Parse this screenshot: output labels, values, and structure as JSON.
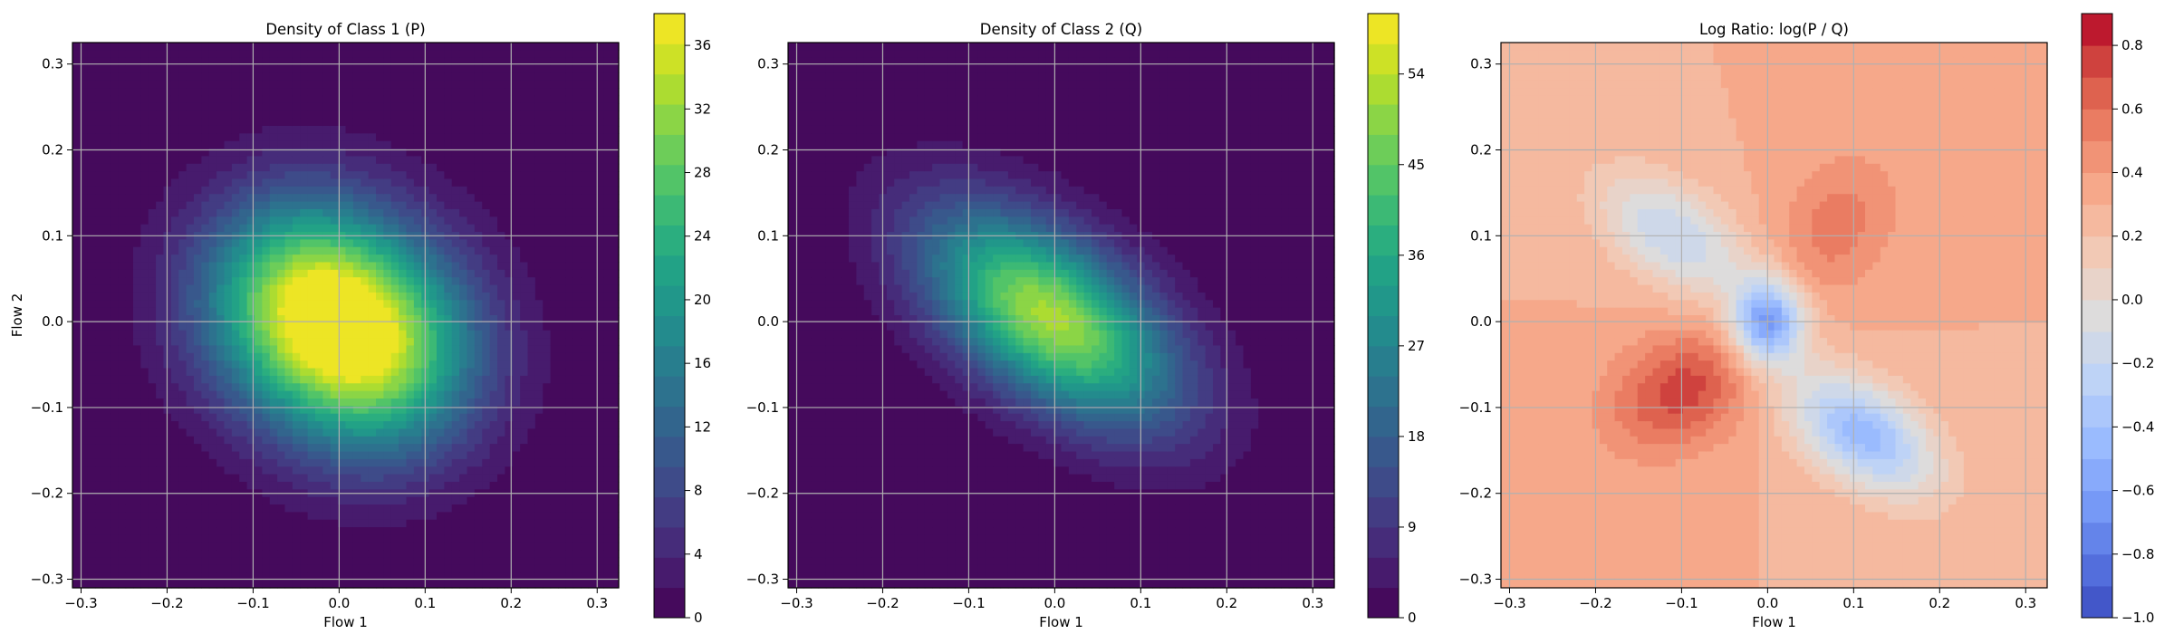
{
  "chart_data": [
    {
      "type": "heatmap",
      "title": "Density of Class 1 (P)",
      "xlabel": "Flow 1",
      "ylabel": "Flow 2",
      "xlim": [
        -0.31,
        0.325
      ],
      "ylim": [
        -0.31,
        0.325
      ],
      "x_ticks": [
        -0.3,
        -0.2,
        -0.1,
        0.0,
        0.1,
        0.2,
        0.3
      ],
      "x_tick_labels": [
        "−0.3",
        "−0.2",
        "−0.1",
        "0.0",
        "0.1",
        "0.2",
        "0.3"
      ],
      "y_ticks": [
        -0.3,
        -0.2,
        -0.1,
        0.0,
        0.1,
        0.2,
        0.3
      ],
      "y_tick_labels": [
        "−0.3",
        "−0.2",
        "−0.1",
        "0.0",
        "0.1",
        "0.2",
        "0.3"
      ],
      "grid": true,
      "colormap": "viridis",
      "colorbar": {
        "min": 0,
        "max": 38,
        "ticks": [
          0,
          4,
          8,
          12,
          16,
          20,
          24,
          28,
          32,
          36
        ],
        "tick_labels": [
          "0",
          "4",
          "8",
          "12",
          "16",
          "20",
          "24",
          "28",
          "32",
          "36"
        ]
      },
      "features": [
        {
          "kind": "gaussian",
          "cx": -0.045,
          "cy": 0.03,
          "sx": 0.085,
          "sy": 0.085,
          "rho": 0.0,
          "peak": 28
        },
        {
          "kind": "gaussian",
          "cx": 0.045,
          "cy": -0.04,
          "sx": 0.085,
          "sy": 0.085,
          "rho": 0.0,
          "peak": 28
        }
      ]
    },
    {
      "type": "heatmap",
      "title": "Density of Class 2 (Q)",
      "xlabel": "Flow 1",
      "ylabel": "",
      "xlim": [
        -0.31,
        0.325
      ],
      "ylim": [
        -0.31,
        0.325
      ],
      "x_ticks": [
        -0.3,
        -0.2,
        -0.1,
        0.0,
        0.1,
        0.2,
        0.3
      ],
      "x_tick_labels": [
        "−0.3",
        "−0.2",
        "−0.1",
        "0.0",
        "0.1",
        "0.2",
        "0.3"
      ],
      "y_ticks": [
        -0.3,
        -0.2,
        -0.1,
        0.0,
        0.1,
        0.2,
        0.3
      ],
      "y_tick_labels": [
        "−0.3",
        "−0.2",
        "−0.1",
        "0.0",
        "0.1",
        "0.2",
        "0.3"
      ],
      "grid": true,
      "colormap": "viridis",
      "colorbar": {
        "min": 0,
        "max": 60,
        "ticks": [
          0,
          9,
          18,
          27,
          36,
          45,
          54
        ],
        "tick_labels": [
          "0",
          "9",
          "18",
          "27",
          "36",
          "45",
          "54"
        ]
      },
      "features": [
        {
          "kind": "gaussian",
          "cx": -0.005,
          "cy": 0.005,
          "sx": 0.1,
          "sy": 0.085,
          "rho": -0.55,
          "peak": 52
        }
      ]
    },
    {
      "type": "heatmap",
      "title": "Log Ratio: log(P / Q)",
      "xlabel": "Flow 1",
      "ylabel": "",
      "xlim": [
        -0.31,
        0.325
      ],
      "ylim": [
        -0.31,
        0.325
      ],
      "x_ticks": [
        -0.3,
        -0.2,
        -0.1,
        0.0,
        0.1,
        0.2,
        0.3
      ],
      "x_tick_labels": [
        "−0.3",
        "−0.2",
        "−0.1",
        "0.0",
        "0.1",
        "0.2",
        "0.3"
      ],
      "y_ticks": [
        -0.3,
        -0.2,
        -0.1,
        0.0,
        0.1,
        0.2,
        0.3
      ],
      "y_tick_labels": [
        "−0.3",
        "−0.2",
        "−0.1",
        "0.0",
        "0.1",
        "0.2",
        "0.3"
      ],
      "grid": true,
      "colormap": "coolwarm",
      "colorbar": {
        "min": -1.0,
        "max": 0.9,
        "ticks": [
          -1.0,
          -0.8,
          -0.6,
          -0.4,
          -0.2,
          0.0,
          0.2,
          0.4,
          0.6,
          0.8
        ],
        "tick_labels": [
          "−1.0",
          "−0.8",
          "−0.6",
          "−0.4",
          "−0.2",
          "0.0",
          "0.2",
          "0.4",
          "0.6",
          "0.8"
        ]
      },
      "features": [
        {
          "kind": "background",
          "value": 0.3
        },
        {
          "kind": "gaussian",
          "cx": 0.0,
          "cy": 0.0,
          "sx": 0.03,
          "sy": 0.035,
          "rho": 0.0,
          "peak": -0.95
        },
        {
          "kind": "gaussian",
          "cx": 0.11,
          "cy": -0.13,
          "sx": 0.06,
          "sy": 0.05,
          "rho": -0.5,
          "peak": -0.75
        },
        {
          "kind": "gaussian",
          "cx": -0.11,
          "cy": 0.1,
          "sx": 0.06,
          "sy": 0.05,
          "rho": -0.5,
          "peak": -0.5
        },
        {
          "kind": "gaussian",
          "cx": -0.1,
          "cy": -0.08,
          "sx": 0.06,
          "sy": 0.05,
          "rho": 0.3,
          "peak": 0.45
        },
        {
          "kind": "gaussian",
          "cx": 0.08,
          "cy": 0.11,
          "sx": 0.05,
          "sy": 0.06,
          "rho": 0.3,
          "peak": 0.25
        }
      ]
    }
  ]
}
